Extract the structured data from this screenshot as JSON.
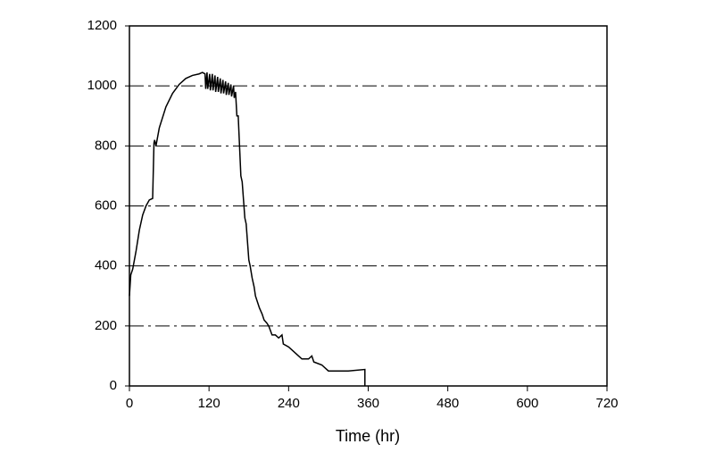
{
  "chart_data": {
    "type": "line",
    "x_label": "Time (hr)",
    "xlim": [
      0,
      720
    ],
    "xticks": [
      0,
      120,
      240,
      360,
      480,
      600,
      720
    ],
    "ylim": [
      0,
      1200
    ],
    "yticks": [
      0,
      200,
      400,
      600,
      800,
      1000,
      1200
    ],
    "grid": true,
    "series": [
      {
        "color": "#000000",
        "x": [
          0,
          2,
          5,
          10,
          15,
          20,
          25,
          30,
          35,
          37,
          38,
          40,
          45,
          55,
          65,
          75,
          85,
          95,
          105,
          110,
          114,
          115,
          117,
          118,
          121,
          122,
          125,
          126,
          129,
          130,
          133,
          134,
          137,
          138,
          141,
          142,
          145,
          146,
          149,
          150,
          153,
          154,
          157,
          158,
          160,
          162,
          164,
          166,
          168,
          170,
          172,
          174,
          176,
          178,
          180,
          182,
          185,
          188,
          190,
          193,
          196,
          200,
          203,
          207,
          210,
          215,
          220,
          225,
          230,
          232,
          240,
          245,
          250,
          255,
          260,
          270,
          275,
          278,
          290,
          300,
          310,
          330,
          355,
          355
        ],
        "values": [
          300,
          370,
          390,
          450,
          520,
          570,
          600,
          620,
          625,
          810,
          820,
          800,
          860,
          930,
          975,
          1005,
          1025,
          1035,
          1040,
          1045,
          1040,
          990,
          1045,
          990,
          1040,
          985,
          1040,
          985,
          1035,
          980,
          1030,
          980,
          1025,
          975,
          1020,
          975,
          1015,
          970,
          1010,
          970,
          1005,
          965,
          1000,
          960,
          980,
          900,
          900,
          800,
          700,
          680,
          620,
          560,
          540,
          480,
          420,
          400,
          360,
          330,
          300,
          280,
          260,
          240,
          220,
          210,
          200,
          170,
          170,
          160,
          170,
          140,
          130,
          120,
          110,
          100,
          90,
          90,
          100,
          80,
          70,
          50,
          50,
          50,
          55,
          0
        ]
      }
    ]
  }
}
